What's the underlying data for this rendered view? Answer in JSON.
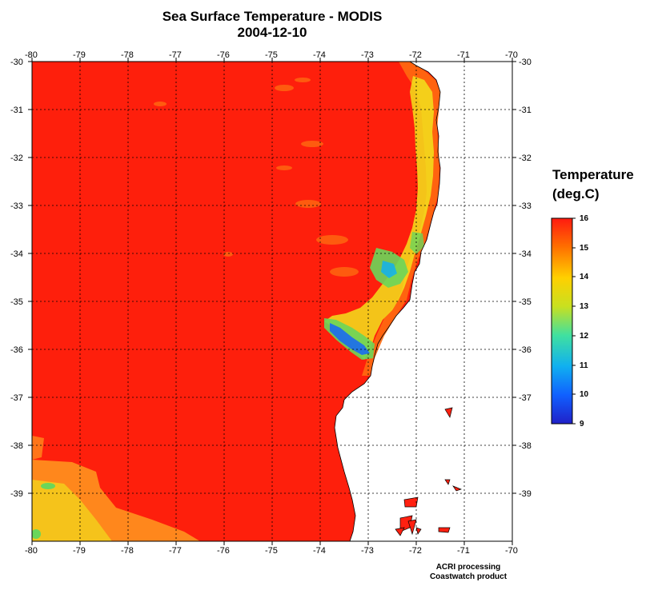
{
  "title": "Sea Surface Temperature - MODIS",
  "date": "2004-12-10",
  "x_ticks": [
    "-80",
    "-79",
    "-78",
    "-77",
    "-76",
    "-75",
    "-74",
    "-73",
    "-72",
    "-71",
    "-70"
  ],
  "y_ticks": [
    "-30",
    "-31",
    "-32",
    "-33",
    "-34",
    "-35",
    "-36",
    "-37",
    "-38",
    "-39"
  ],
  "legend": {
    "title_line1": "Temperature",
    "title_line2": "(deg.C)",
    "labels": [
      "16",
      "15",
      "14",
      "13",
      "12",
      "11",
      "10",
      "9"
    ],
    "min": 9,
    "max": 16,
    "colors": [
      "#2020c8",
      "#1060ff",
      "#10b0f0",
      "#40e0a0",
      "#c8e020",
      "#ffd000",
      "#ff7000",
      "#ff1a10"
    ]
  },
  "colors": {
    "ocean_warm": "#fe1f0c",
    "ocean_orange": "#ff6a10",
    "coastal_yellow": "#f2e21c",
    "coastal_green": "#6ad65a",
    "coastal_blue": "#1a6cf0",
    "land": "#ffffff",
    "grid": "#000000"
  },
  "credit_line1": "ACRI processing",
  "credit_line2": "Coastwatch product"
}
